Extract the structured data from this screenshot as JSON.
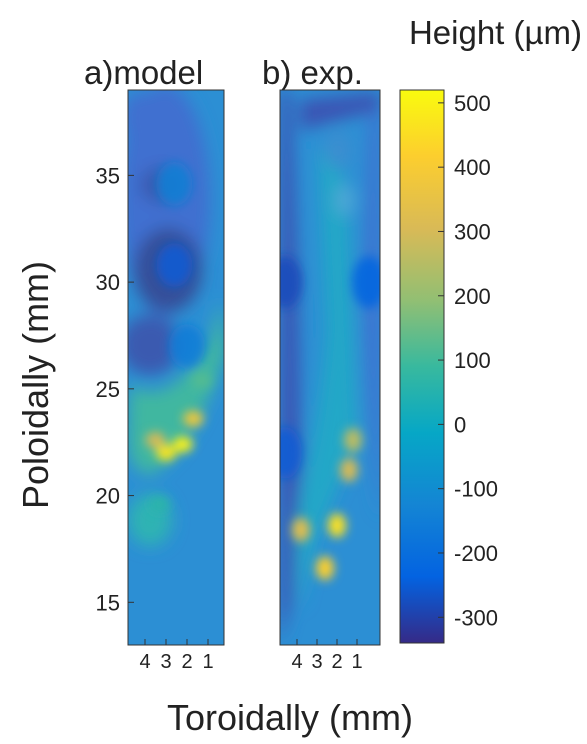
{
  "chart_data": [
    {
      "type": "heatmap",
      "panel_label": "a)model",
      "xlabel": "Toroidally (mm)",
      "ylabel": "Poloidally (mm)",
      "ylim": [
        13,
        39
      ],
      "yticks": [
        15,
        20,
        25,
        30,
        35
      ],
      "xticks": [
        4,
        3,
        2,
        1
      ],
      "hotspots": [
        {
          "x": 2.2,
          "y": 22.4,
          "value": 500
        },
        {
          "x": 3.0,
          "y": 22.0,
          "value": 470
        },
        {
          "x": 1.7,
          "y": 23.6,
          "value": 380
        },
        {
          "x": 3.5,
          "y": 22.6,
          "value": 300
        },
        {
          "x": 1.3,
          "y": 25.4,
          "value": 120
        },
        {
          "x": 3.3,
          "y": 19.6,
          "value": 60
        }
      ],
      "lows": [
        {
          "x": 2.6,
          "y": 30.8,
          "value": -250
        },
        {
          "x": 2.6,
          "y": 34.6,
          "value": -140
        },
        {
          "x": 2.0,
          "y": 27.0,
          "value": -150
        }
      ]
    },
    {
      "type": "heatmap",
      "panel_label": "b) exp.",
      "xlabel": "Toroidally (mm)",
      "ylim": [
        13,
        39
      ],
      "xticks": [
        4,
        3,
        2,
        1
      ],
      "hotspots": [
        {
          "x": 2.0,
          "y": 18.6,
          "value": 460
        },
        {
          "x": 2.6,
          "y": 16.6,
          "value": 420
        },
        {
          "x": 3.8,
          "y": 18.4,
          "value": 330
        },
        {
          "x": 1.4,
          "y": 21.2,
          "value": 300
        },
        {
          "x": 1.2,
          "y": 22.6,
          "value": 260
        }
      ],
      "lows": [
        {
          "x": 4.6,
          "y": 30.0,
          "value": -280
        },
        {
          "x": 4.6,
          "y": 22.0,
          "value": -250
        },
        {
          "x": 0.4,
          "y": 30.0,
          "value": -230
        }
      ]
    }
  ],
  "colorbar": {
    "label": "Height (µm)",
    "range": [
      -340,
      520
    ],
    "ticks": [
      500,
      400,
      300,
      200,
      100,
      0,
      -100,
      -200,
      -300
    ]
  }
}
